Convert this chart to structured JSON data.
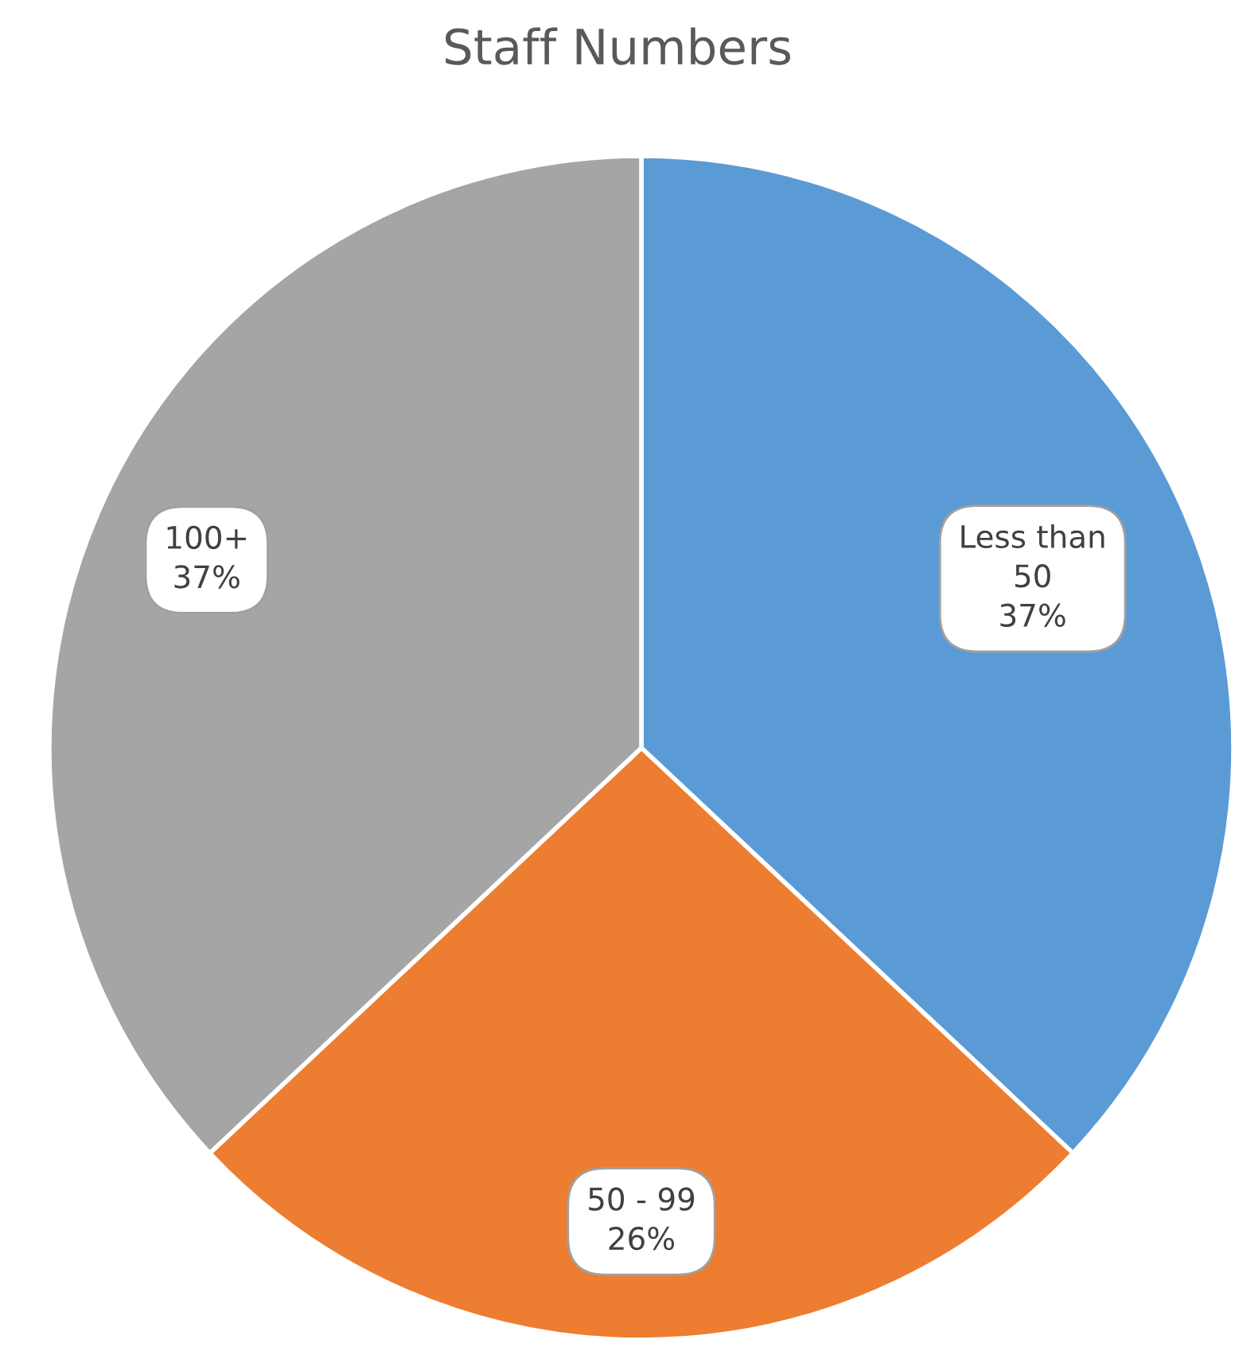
{
  "chart_data": {
    "type": "pie",
    "title": "Staff Numbers",
    "categories": [
      "Less than 50",
      "50 - 99",
      "100+"
    ],
    "values": [
      37,
      26,
      37
    ],
    "colors": [
      "#5b9bd5",
      "#ed7d31",
      "#a5a5a5"
    ],
    "value_labels": [
      "37%",
      "26%",
      "37%"
    ],
    "legend": false
  }
}
